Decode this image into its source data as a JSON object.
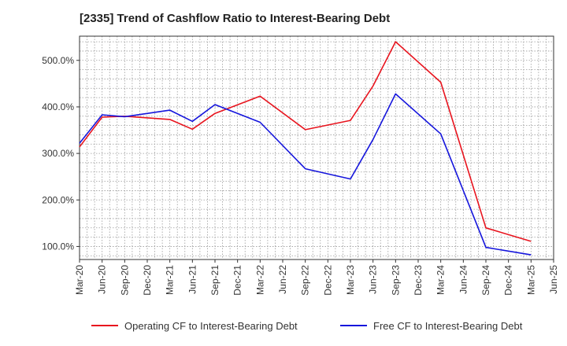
{
  "chart_data": {
    "type": "line",
    "title": "[2335]  Trend of Cashflow Ratio to Interest-Bearing Debt",
    "xlabel": "",
    "ylabel": "",
    "x_ticks": [
      "Mar-20",
      "Jun-20",
      "Sep-20",
      "Dec-20",
      "Mar-21",
      "Jun-21",
      "Sep-21",
      "Dec-21",
      "Mar-22",
      "Jun-22",
      "Sep-22",
      "Dec-22",
      "Mar-23",
      "Jun-23",
      "Sep-23",
      "Dec-23",
      "Mar-24",
      "Jun-24",
      "Sep-24",
      "Dec-24",
      "Mar-25",
      "Jun-25"
    ],
    "y_ticks": [
      {
        "value": 100,
        "label": "100.0%"
      },
      {
        "value": 200,
        "label": "200.0%"
      },
      {
        "value": 300,
        "label": "300.0%"
      },
      {
        "value": 400,
        "label": "400.0%"
      },
      {
        "value": 500,
        "label": "500.0%"
      }
    ],
    "ylim": [
      72,
      552
    ],
    "grid": true,
    "legend_position": "bottom",
    "series": [
      {
        "name": "Operating CF to Interest-Bearing Debt",
        "color": "#e8141e",
        "points": [
          {
            "x": "Mar-20",
            "y": 314
          },
          {
            "x": "Jun-20",
            "y": 378
          },
          {
            "x": "Sep-20",
            "y": 380
          },
          {
            "x": "Mar-21",
            "y": 373
          },
          {
            "x": "Jun-21",
            "y": 352
          },
          {
            "x": "Sep-21",
            "y": 386
          },
          {
            "x": "Mar-22",
            "y": 423
          },
          {
            "x": "Sep-22",
            "y": 351
          },
          {
            "x": "Mar-23",
            "y": 371
          },
          {
            "x": "Jun-23",
            "y": 445
          },
          {
            "x": "Sep-23",
            "y": 540
          },
          {
            "x": "Mar-24",
            "y": 453
          },
          {
            "x": "Sep-24",
            "y": 140
          },
          {
            "x": "Mar-25",
            "y": 111
          }
        ]
      },
      {
        "name": "Free CF to Interest-Bearing Debt",
        "color": "#1515dc",
        "points": [
          {
            "x": "Mar-20",
            "y": 322
          },
          {
            "x": "Jun-20",
            "y": 383
          },
          {
            "x": "Sep-20",
            "y": 379
          },
          {
            "x": "Mar-21",
            "y": 393
          },
          {
            "x": "Jun-21",
            "y": 369
          },
          {
            "x": "Sep-21",
            "y": 405
          },
          {
            "x": "Mar-22",
            "y": 367
          },
          {
            "x": "Sep-22",
            "y": 267
          },
          {
            "x": "Mar-23",
            "y": 245
          },
          {
            "x": "Jun-23",
            "y": 330
          },
          {
            "x": "Sep-23",
            "y": 428
          },
          {
            "x": "Mar-24",
            "y": 342
          },
          {
            "x": "Sep-24",
            "y": 98
          },
          {
            "x": "Mar-25",
            "y": 82
          }
        ]
      }
    ]
  }
}
